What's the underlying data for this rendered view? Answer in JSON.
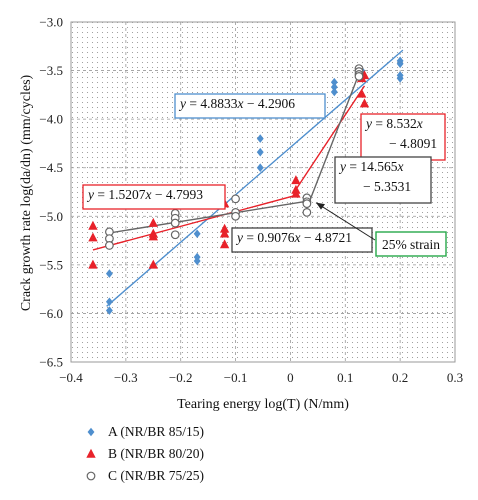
{
  "chart_data": {
    "type": "scatter",
    "xlabel": "Tearing energy log(T) (N/mm)",
    "ylabel": "Crack growth rate log(da/dn) (mm/cycles)",
    "xlim": [
      -0.4,
      0.3
    ],
    "ylim": [
      -6.5,
      -3.0
    ],
    "x_ticks": [
      "−0.4",
      "−0.3",
      "−0.2",
      "−0.1",
      "0",
      "0.1",
      "0.2",
      "0.3"
    ],
    "y_ticks": [
      "−6.5",
      "−6.0",
      "−5.5",
      "−5.0",
      "−4.5",
      "−4.0",
      "−3.5",
      "−3.0"
    ],
    "grid": "dotted",
    "series": [
      {
        "name": "A (NR/BR 85/15)",
        "marker": "diamond",
        "color": "#4f8fce",
        "points": [
          [
            -0.33,
            -5.88
          ],
          [
            -0.33,
            -5.97
          ],
          [
            -0.33,
            -5.59
          ],
          [
            -0.17,
            -5.18
          ],
          [
            -0.17,
            -5.42
          ],
          [
            -0.17,
            -5.46
          ],
          [
            -0.055,
            -4.2
          ],
          [
            -0.055,
            -4.34
          ],
          [
            -0.055,
            -4.5
          ],
          [
            0.08,
            -3.62
          ],
          [
            0.08,
            -3.67
          ],
          [
            0.08,
            -3.72
          ],
          [
            0.13,
            -3.5
          ],
          [
            0.13,
            -3.56
          ],
          [
            0.2,
            -3.4
          ],
          [
            0.2,
            -3.43
          ],
          [
            0.2,
            -3.55
          ],
          [
            0.2,
            -3.58
          ]
        ],
        "fit": {
          "slope": 4.8833,
          "intercept": -4.2906,
          "x_range": [
            -0.335,
            0.205
          ]
        }
      },
      {
        "name": "B (NR/BR 80/20)",
        "marker": "triangle",
        "color": "#e8222a",
        "points": [
          [
            -0.36,
            -5.1
          ],
          [
            -0.36,
            -5.22
          ],
          [
            -0.36,
            -5.5
          ],
          [
            -0.25,
            -5.07
          ],
          [
            -0.25,
            -5.18
          ],
          [
            -0.25,
            -5.21
          ],
          [
            -0.25,
            -5.5
          ],
          [
            -0.12,
            -4.87
          ],
          [
            -0.12,
            -5.13
          ],
          [
            -0.12,
            -5.18
          ],
          [
            -0.12,
            -5.29
          ],
          [
            0.01,
            -4.63
          ],
          [
            0.01,
            -4.73
          ],
          [
            0.01,
            -4.77
          ],
          [
            0.13,
            -3.58
          ],
          [
            0.13,
            -3.74
          ],
          [
            0.135,
            -3.55
          ],
          [
            0.135,
            -3.84
          ]
        ],
        "fits": [
          {
            "slope": 1.5207,
            "intercept": -4.7993,
            "x_range": [
              -0.36,
              0.015
            ]
          },
          {
            "slope": 8.532,
            "intercept": -4.8091,
            "x_range": [
              0.01,
              0.135
            ]
          }
        ]
      },
      {
        "name": "C (NR/BR 75/25)",
        "marker": "circle-open",
        "color": "#666666",
        "points": [
          [
            -0.33,
            -5.16
          ],
          [
            -0.33,
            -5.23
          ],
          [
            -0.33,
            -5.3
          ],
          [
            -0.21,
            -4.97
          ],
          [
            -0.21,
            -5.02
          ],
          [
            -0.21,
            -5.07
          ],
          [
            -0.21,
            -5.19
          ],
          [
            -0.1,
            -4.82
          ],
          [
            -0.1,
            -4.96
          ],
          [
            -0.1,
            -5.0
          ],
          [
            0.03,
            -4.81
          ],
          [
            0.03,
            -4.85
          ],
          [
            0.03,
            -4.87
          ],
          [
            0.03,
            -4.96
          ],
          [
            0.125,
            -3.48
          ],
          [
            0.125,
            -3.51
          ],
          [
            0.125,
            -3.54
          ],
          [
            0.125,
            -3.56
          ]
        ],
        "fits": [
          {
            "slope": 0.9076,
            "intercept": -4.8721,
            "x_range": [
              -0.335,
              0.032
            ]
          },
          {
            "slope": 14.565,
            "intercept": -5.3531,
            "x_range": [
              0.028,
              0.13
            ]
          }
        ]
      }
    ],
    "annotations": [
      {
        "lines": [
          [
            {
              "t": "y",
              "i": true
            },
            {
              "t": " = 4.8833"
            },
            {
              "t": "x",
              "i": true
            },
            {
              "t": " − 4.2906"
            }
          ]
        ],
        "border": "#4f8fce"
      },
      {
        "lines": [
          [
            {
              "t": "y",
              "i": true
            },
            {
              "t": " = 8.532"
            },
            {
              "t": "x",
              "i": true
            }
          ],
          [
            {
              "t": "− 4.8091"
            }
          ]
        ],
        "border": "#e8222a"
      },
      {
        "lines": [
          [
            {
              "t": "y",
              "i": true
            },
            {
              "t": " = 14.565"
            },
            {
              "t": "x",
              "i": true
            }
          ],
          [
            {
              "t": "− 5.3531"
            }
          ]
        ],
        "border": "#444444"
      },
      {
        "lines": [
          [
            {
              "t": "y",
              "i": true
            },
            {
              "t": " = 1.5207"
            },
            {
              "t": "x",
              "i": true
            },
            {
              "t": " − 4.7993"
            }
          ]
        ],
        "border": "#e8222a"
      },
      {
        "lines": [
          [
            {
              "t": "y",
              "i": true
            },
            {
              "t": " = 0.9076"
            },
            {
              "t": "x",
              "i": true
            },
            {
              "t": " − 4.8721"
            }
          ]
        ],
        "border": "#444444"
      },
      {
        "lines": [
          [
            {
              "t": "25% strain"
            }
          ]
        ],
        "border": "#27a84a"
      }
    ]
  }
}
